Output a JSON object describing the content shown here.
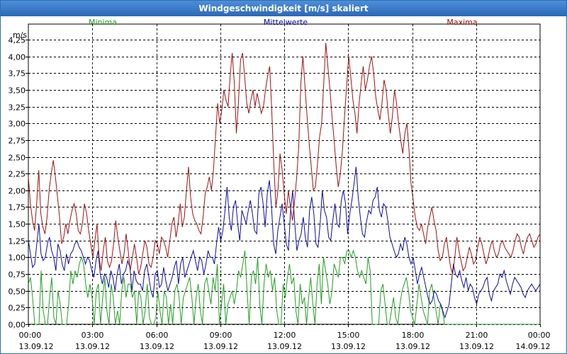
{
  "window": {
    "title": "Windgeschwindigkeit [m/s] skaliert"
  },
  "colors": {
    "minima": "#1fa01f",
    "mittelwerte": "#0a0aa8",
    "maxima": "#a01010",
    "grid": "#000000",
    "title_bar": "#2a68b8"
  },
  "chart_data": {
    "type": "line",
    "title": "Windgeschwindigkeit [m/s] skaliert",
    "ylabel": "m/s",
    "ylim": [
      0,
      4.25
    ],
    "yticks": [
      "0,00",
      "0,25",
      "0,50",
      "0,75",
      "1,00",
      "1,25",
      "1,50",
      "1,75",
      "2,00",
      "2,25",
      "2,50",
      "2,75",
      "3,00",
      "3,25",
      "3,50",
      "3,75",
      "4,00",
      "4,25"
    ],
    "xticks": [
      {
        "time": "00:00",
        "date": "13.09.12"
      },
      {
        "time": "03:00",
        "date": "13.09.12"
      },
      {
        "time": "06:00",
        "date": "13.09.12"
      },
      {
        "time": "09:00",
        "date": "13.09.12"
      },
      {
        "time": "12:00",
        "date": "13.09.12"
      },
      {
        "time": "15:00",
        "date": "13.09.12"
      },
      {
        "time": "18:00",
        "date": "13.09.12"
      },
      {
        "time": "21:00",
        "date": "13.09.12"
      },
      {
        "time": "00:00",
        "date": "14.09.12"
      }
    ],
    "xrange": [
      "13.09.12 00:00",
      "14.09.12 00:00"
    ],
    "interval_minutes": 10,
    "grid": true,
    "legend": "top",
    "series": [
      {
        "name": "Minima",
        "values": [
          0.6,
          0.7,
          0.4,
          0.0,
          0.0,
          0.0,
          0.8,
          0.2,
          0.0,
          0.0,
          0.4,
          0.7,
          0.1,
          0.0,
          0.5,
          0.3,
          0.0,
          0.0,
          0.0,
          0.3,
          0.8,
          0.6,
          0.8,
          0.7,
          0.9,
          1.0,
          0.9,
          0.6,
          0.4,
          0.6,
          0.4,
          0.0,
          0.5,
          0.6,
          0.0,
          0.4,
          0.7,
          0.2,
          0.0,
          0.6,
          0.4,
          0.0,
          0.2,
          0.0,
          0.5,
          0.7,
          0.4,
          0.6,
          0.6,
          0.4,
          0.5,
          0.0,
          0.5,
          0.4,
          0.0,
          0.2,
          0.6,
          0.1,
          0.0,
          0.0,
          0.1,
          0.5,
          0.2,
          0.0,
          0.5,
          0.4,
          0.0,
          0.3,
          0.0,
          0.5,
          0.6,
          0.4,
          0.0,
          0.4,
          0.5,
          0.6,
          0.7,
          0.4,
          0.0,
          0.4,
          0.6,
          0.2,
          0.0,
          0.6,
          0.7,
          0.5,
          0.3,
          0.7,
          0.5,
          0.9,
          0.0,
          0.3,
          0.6,
          0.0,
          0.3,
          0.4,
          0.5,
          0.3,
          0.5,
          0.8,
          0.7,
          0.9,
          1.1,
          0.5,
          0.0,
          0.7,
          0.8,
          0.6,
          1.0,
          0.3,
          0.0,
          0.6,
          0.9,
          0.7,
          0.8,
          0.5,
          0.7,
          0.2,
          0.0,
          0.0,
          0.6,
          0.4,
          0.7,
          0.9,
          0.6,
          0.7,
          0.2,
          0.0,
          0.6,
          0.3,
          0.4,
          0.0,
          0.4,
          0.7,
          0.3,
          0.0,
          0.6,
          0.9,
          0.3,
          1.0,
          0.8,
          0.6,
          0.3,
          0.5,
          0.9,
          0.8,
          0.7,
          1.0,
          1.0,
          0.9,
          1.1,
          1.1,
          1.0,
          1.1,
          1.0,
          0.8,
          0.7,
          0.8,
          0.7,
          0.6,
          1.0,
          0.8,
          0.0,
          0.0,
          0.0,
          0.0,
          0.5,
          0.6,
          0.3,
          0.0,
          0.0,
          0.2,
          0.4,
          0.1,
          0.0,
          0.3,
          0.5,
          0.6,
          0.7,
          0.5,
          0.2,
          0.1,
          0.0,
          0.3,
          0.6,
          0.4,
          0.2,
          0.1,
          0.0,
          0.5,
          0.6,
          0.4,
          0.2,
          0.0,
          0.3,
          0.2,
          0.0,
          0.0,
          0.0,
          0.0,
          0.0,
          0.0,
          0.0,
          0.0,
          0.0,
          0.0,
          0.0,
          0.0,
          0.0,
          0.0,
          0.0,
          0.0,
          0.0,
          0.0,
          0.0,
          0.0,
          0.0,
          0.0,
          0.0,
          0.0,
          0.0,
          0.0,
          0.0,
          0.0,
          0.0,
          0.0,
          0.0,
          0.0,
          0.0,
          0.0,
          0.0,
          0.0,
          0.0,
          0.0,
          0.0,
          0.0,
          0.0,
          0.0,
          0.0,
          0.0,
          0.0,
          0.0
        ]
      },
      {
        "name": "Mittelwerte",
        "values": [
          1.25,
          1.05,
          0.85,
          0.9,
          1.2,
          1.5,
          1.05,
          0.95,
          1.0,
          1.2,
          1.3,
          1.1,
          1.0,
          0.8,
          1.2,
          1.1,
          0.9,
          0.8,
          1.05,
          0.9,
          1.05,
          1.1,
          1.2,
          1.25,
          1.15,
          1.1,
          1.0,
          0.9,
          1.0,
          0.95,
          0.8,
          0.7,
          0.95,
          1.1,
          0.75,
          0.6,
          0.75,
          0.7,
          0.55,
          0.8,
          0.7,
          0.5,
          0.75,
          0.9,
          0.6,
          0.75,
          0.8,
          0.95,
          0.85,
          0.5,
          0.8,
          0.65,
          0.6,
          0.6,
          0.5,
          0.8,
          0.9,
          0.7,
          0.5,
          0.4,
          0.75,
          0.8,
          0.55,
          0.6,
          0.85,
          0.65,
          0.5,
          0.6,
          0.7,
          0.85,
          0.95,
          0.6,
          0.9,
          1.0,
          0.7,
          0.8,
          0.9,
          1.0,
          1.1,
          0.95,
          0.8,
          1.0,
          0.95,
          0.75,
          0.9,
          1.1,
          1.0,
          1.0,
          0.9,
          1.2,
          1.45,
          1.25,
          1.4,
          1.7,
          2.05,
          1.6,
          1.4,
          1.75,
          1.85,
          1.5,
          1.25,
          1.7,
          1.6,
          1.5,
          1.7,
          1.85,
          1.65,
          1.4,
          1.35,
          1.95,
          2.05,
          1.8,
          1.45,
          1.95,
          2.15,
          1.75,
          1.2,
          1.05,
          1.4,
          1.6,
          1.8,
          1.5,
          1.2,
          1.1,
          1.7,
          2.0,
          1.5,
          1.1,
          1.25,
          1.35,
          1.6,
          1.3,
          1.15,
          1.7,
          1.9,
          1.65,
          1.2,
          1.15,
          1.5,
          2.0,
          1.7,
          1.6,
          1.3,
          1.25,
          1.55,
          1.8,
          1.5,
          1.45,
          1.85,
          2.0,
          1.8,
          1.35,
          1.65,
          1.85,
          2.1,
          2.35,
          1.9,
          1.6,
          1.35,
          1.3,
          1.55,
          1.7,
          1.65,
          1.85,
          1.9,
          2.05,
          1.7,
          1.6,
          1.8,
          1.75,
          1.55,
          1.3,
          1.2,
          1.1,
          1.0,
          1.05,
          1.2,
          1.1,
          1.3,
          1.2,
          1.0,
          0.9,
          1.0,
          0.8,
          0.6,
          0.75,
          0.85,
          0.7,
          0.55,
          0.4,
          0.3,
          0.35,
          0.5,
          0.45,
          0.35,
          0.3,
          0.2,
          0.1,
          0.2,
          0.3,
          0.6,
          0.9,
          0.75,
          0.7,
          0.8,
          0.65,
          0.55,
          0.7,
          0.5,
          0.6,
          0.55,
          0.4,
          0.3,
          0.45,
          0.5,
          0.55,
          0.65,
          0.7,
          0.45,
          0.35,
          0.5,
          0.55,
          0.6,
          0.75,
          0.7,
          0.8,
          0.65,
          0.55,
          0.45,
          0.6,
          0.7,
          0.65,
          0.6,
          0.55,
          0.45,
          0.4,
          0.5,
          0.55,
          0.6,
          0.55,
          0.5,
          0.55,
          0.6
        ]
      },
      {
        "name": "Maxima",
        "values": [
          2.2,
          1.8,
          1.55,
          1.4,
          1.8,
          2.3,
          1.65,
          1.45,
          1.35,
          1.6,
          2.0,
          2.25,
          2.45,
          2.2,
          1.9,
          1.6,
          1.2,
          1.3,
          1.5,
          1.35,
          1.55,
          1.7,
          1.8,
          1.65,
          1.4,
          1.35,
          1.5,
          1.8,
          1.65,
          1.4,
          1.2,
          1.0,
          1.25,
          1.5,
          1.0,
          0.8,
          1.1,
          1.3,
          0.95,
          0.85,
          0.95,
          1.2,
          1.55,
          1.3,
          1.1,
          0.9,
          1.05,
          1.35,
          1.1,
          0.8,
          1.0,
          1.2,
          1.0,
          0.75,
          0.85,
          1.05,
          1.25,
          1.15,
          0.9,
          0.85,
          1.0,
          1.25,
          1.2,
          1.05,
          1.3,
          1.25,
          1.15,
          1.0,
          1.25,
          1.5,
          1.6,
          1.3,
          1.5,
          1.8,
          1.45,
          1.6,
          2.0,
          2.35,
          1.9,
          1.65,
          1.55,
          1.5,
          1.4,
          1.35,
          1.6,
          1.95,
          2.05,
          2.2,
          2.0,
          2.3,
          2.8,
          3.3,
          3.0,
          3.2,
          3.5,
          3.35,
          3.25,
          3.7,
          4.05,
          3.6,
          2.85,
          3.3,
          3.95,
          4.05,
          3.7,
          3.3,
          3.15,
          3.35,
          3.5,
          3.25,
          3.45,
          3.3,
          3.15,
          3.25,
          3.5,
          3.7,
          3.85,
          3.2,
          2.4,
          1.75,
          2.0,
          2.55,
          2.3,
          1.95,
          1.65,
          2.0,
          1.75,
          1.55,
          1.85,
          2.2,
          2.65,
          3.6,
          4.0,
          3.55,
          3.1,
          2.7,
          2.35,
          2.0,
          2.05,
          2.4,
          2.8,
          3.0,
          3.6,
          4.2,
          3.85,
          3.5,
          3.1,
          2.75,
          2.35,
          2.05,
          2.25,
          2.6,
          3.1,
          3.55,
          4.0,
          3.7,
          3.35,
          3.15,
          2.85,
          3.3,
          3.6,
          3.85,
          3.5,
          3.65,
          3.85,
          4.0,
          3.75,
          3.4,
          3.2,
          3.05,
          3.3,
          3.65,
          3.5,
          3.15,
          2.85,
          3.1,
          3.5,
          3.3,
          3.0,
          2.75,
          2.55,
          2.85,
          3.0,
          2.6,
          2.1,
          1.85,
          1.6,
          1.45,
          1.4,
          1.5,
          1.35,
          1.2,
          1.45,
          1.6,
          1.75,
          1.55,
          1.4,
          1.1,
          0.95,
          1.0,
          1.2,
          1.3,
          1.05,
          0.85,
          0.75,
          1.0,
          1.3,
          1.1,
          0.95,
          0.8,
          0.85,
          1.0,
          1.15,
          1.05,
          0.9,
          0.95,
          1.15,
          1.3,
          1.2,
          1.05,
          0.9,
          1.0,
          1.15,
          1.25,
          1.1,
          1.0,
          1.05,
          1.2,
          1.25,
          1.15,
          1.1,
          1.05,
          1.0,
          1.1,
          1.25,
          1.35,
          1.3,
          1.15,
          1.05,
          1.2,
          1.3,
          1.35,
          1.25,
          1.15,
          1.2,
          1.3,
          1.35
        ]
      }
    ]
  }
}
